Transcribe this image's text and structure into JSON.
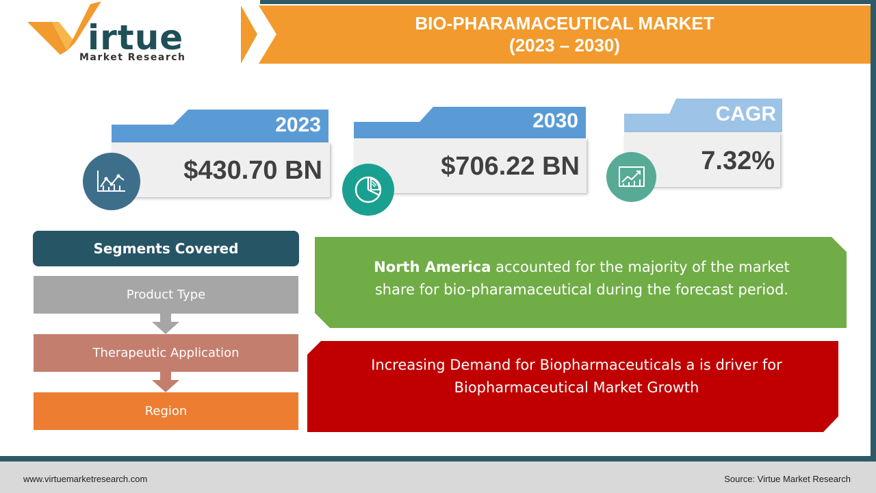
{
  "header": {
    "title_line1": "BIO-PHARAMACEUTICAL MARKET",
    "title_line2": "(2023 – 2030)"
  },
  "logo": {
    "word": "irtue",
    "sub": "Market Research",
    "colors": {
      "v_orange": "#f29a2e",
      "v_gold": "#f7b64a",
      "teal": "#1f4f57"
    }
  },
  "stats": [
    {
      "label": "2023",
      "value": "$430.70 BN",
      "icon": "line-chart-icon",
      "icon_color": "#3d6f8a"
    },
    {
      "label": "2030",
      "value": "$706.22 BN",
      "icon": "pie-chart-icon",
      "icon_color": "#1aa090"
    },
    {
      "label": "CAGR",
      "value": "7.32%",
      "icon": "growth-chart-icon",
      "icon_color": "#57ab96"
    }
  ],
  "segments": {
    "header": "Segments Covered",
    "items": [
      {
        "label": "Product Type",
        "color": "#a6a6a6"
      },
      {
        "label": "Therapeutic Application",
        "color": "#c47e6e"
      },
      {
        "label": "Region",
        "color": "#ec7d31"
      }
    ]
  },
  "green_box": {
    "bold": "North America",
    "text_line1": " accounted for the majority of the market",
    "text_line2": "share for bio-pharamaceutical during the forecast period.",
    "color": "#70ad47"
  },
  "red_box": {
    "line1": "Increasing Demand for Biopharmaceuticals a is driver for",
    "line2": "Biopharmaceutical Market Growth",
    "color": "#c00000"
  },
  "footer": {
    "website": "www.virtuemarketresearch.com",
    "source": "Source:  Virtue Market Research"
  }
}
